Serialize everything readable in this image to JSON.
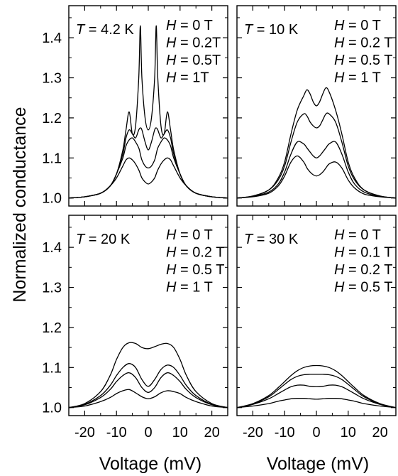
{
  "figure": {
    "ylabel": "Normalized conductance",
    "xlabel": "Voltage (mV)",
    "xlim": [
      -25,
      25
    ],
    "ylim": [
      0.98,
      1.48
    ],
    "x_ticks": [
      -20,
      -10,
      0,
      10,
      20
    ],
    "x_tick_labels": [
      "-20",
      "-10",
      "0",
      "10",
      "20"
    ],
    "y_ticks": [
      1.0,
      1.1,
      1.2,
      1.3,
      1.4
    ],
    "y_tick_labels": [
      "1.0",
      "1.1",
      "1.2",
      "1.3",
      "1.4"
    ],
    "line_color": "#000000",
    "background": "#ffffff"
  },
  "chart_data": [
    {
      "type": "line",
      "temperature_label": "T = 4.2 K",
      "legend_entries": [
        "H = 0 T",
        "H = 0.2T",
        "H = 0.5T",
        "H = 1T"
      ],
      "x": [
        -25,
        -20,
        -15,
        -12,
        -10,
        -8,
        -7,
        -6,
        -5,
        -4,
        -3,
        -2.5,
        -2,
        -1,
        0,
        1,
        2,
        2.5,
        3,
        4,
        5,
        6,
        7,
        8,
        10,
        12,
        15,
        20,
        25
      ],
      "series": [
        {
          "values": [
            1.0,
            1.003,
            1.012,
            1.03,
            1.06,
            1.12,
            1.17,
            1.215,
            1.16,
            1.18,
            1.3,
            1.43,
            1.3,
            1.2,
            1.17,
            1.2,
            1.3,
            1.43,
            1.3,
            1.18,
            1.16,
            1.215,
            1.17,
            1.12,
            1.06,
            1.03,
            1.012,
            1.003,
            1.0
          ]
        },
        {
          "values": [
            1.0,
            1.003,
            1.012,
            1.03,
            1.06,
            1.11,
            1.15,
            1.17,
            1.16,
            1.15,
            1.17,
            1.175,
            1.17,
            1.14,
            1.12,
            1.14,
            1.17,
            1.175,
            1.17,
            1.15,
            1.16,
            1.17,
            1.15,
            1.11,
            1.06,
            1.03,
            1.012,
            1.003,
            1.0
          ]
        },
        {
          "values": [
            1.0,
            1.003,
            1.012,
            1.03,
            1.06,
            1.1,
            1.13,
            1.145,
            1.15,
            1.14,
            1.125,
            1.11,
            1.095,
            1.08,
            1.075,
            1.08,
            1.095,
            1.11,
            1.125,
            1.14,
            1.15,
            1.145,
            1.13,
            1.1,
            1.06,
            1.03,
            1.012,
            1.003,
            1.0
          ]
        },
        {
          "values": [
            1.0,
            1.003,
            1.012,
            1.03,
            1.05,
            1.08,
            1.095,
            1.1,
            1.095,
            1.085,
            1.07,
            1.06,
            1.05,
            1.04,
            1.035,
            1.04,
            1.05,
            1.06,
            1.07,
            1.085,
            1.095,
            1.1,
            1.095,
            1.08,
            1.05,
            1.03,
            1.012,
            1.003,
            1.0
          ]
        }
      ]
    },
    {
      "type": "line",
      "temperature_label": "T = 10 K",
      "legend_entries": [
        "H = 0 T",
        "H = 0.2 T",
        "H = 0.5 T",
        "H = 1 T"
      ],
      "x": [
        -25,
        -20,
        -15,
        -12,
        -10,
        -8,
        -6,
        -4,
        -3,
        -2,
        -1,
        0,
        1,
        2,
        3,
        4,
        6,
        8,
        10,
        12,
        15,
        20,
        25
      ],
      "series": [
        {
          "values": [
            1.0,
            1.005,
            1.02,
            1.05,
            1.09,
            1.16,
            1.22,
            1.255,
            1.27,
            1.26,
            1.24,
            1.23,
            1.24,
            1.26,
            1.275,
            1.265,
            1.22,
            1.16,
            1.09,
            1.05,
            1.02,
            1.005,
            1.0
          ]
        },
        {
          "values": [
            1.0,
            1.005,
            1.02,
            1.045,
            1.08,
            1.14,
            1.19,
            1.21,
            1.205,
            1.19,
            1.18,
            1.175,
            1.18,
            1.195,
            1.21,
            1.21,
            1.19,
            1.14,
            1.08,
            1.045,
            1.02,
            1.005,
            1.0
          ]
        },
        {
          "values": [
            1.0,
            1.004,
            1.015,
            1.035,
            1.065,
            1.11,
            1.14,
            1.135,
            1.125,
            1.115,
            1.105,
            1.1,
            1.105,
            1.115,
            1.125,
            1.135,
            1.14,
            1.11,
            1.065,
            1.035,
            1.015,
            1.004,
            1.0
          ]
        },
        {
          "values": [
            1.0,
            1.003,
            1.012,
            1.03,
            1.055,
            1.09,
            1.105,
            1.09,
            1.075,
            1.065,
            1.058,
            1.055,
            1.058,
            1.065,
            1.075,
            1.085,
            1.09,
            1.075,
            1.045,
            1.025,
            1.01,
            1.003,
            1.0
          ]
        }
      ]
    },
    {
      "type": "line",
      "temperature_label": "T = 20 K",
      "legend_entries": [
        "H = 0 T",
        "H = 0.2 T",
        "H = 0.5 T",
        "H = 1 T"
      ],
      "x": [
        -25,
        -20,
        -15,
        -12,
        -10,
        -8,
        -6,
        -4,
        -2,
        0,
        2,
        4,
        6,
        8,
        10,
        12,
        15,
        20,
        25
      ],
      "series": [
        {
          "values": [
            1.0,
            1.01,
            1.04,
            1.08,
            1.12,
            1.15,
            1.162,
            1.16,
            1.15,
            1.147,
            1.152,
            1.158,
            1.16,
            1.15,
            1.12,
            1.08,
            1.04,
            1.01,
            1.0
          ]
        },
        {
          "values": [
            1.0,
            1.008,
            1.03,
            1.055,
            1.08,
            1.1,
            1.11,
            1.1,
            1.07,
            1.053,
            1.07,
            1.095,
            1.106,
            1.1,
            1.08,
            1.055,
            1.03,
            1.008,
            1.0
          ]
        },
        {
          "values": [
            1.0,
            1.007,
            1.025,
            1.045,
            1.065,
            1.08,
            1.087,
            1.075,
            1.05,
            1.038,
            1.05,
            1.075,
            1.087,
            1.08,
            1.065,
            1.045,
            1.025,
            1.007,
            1.0
          ]
        },
        {
          "values": [
            1.0,
            1.004,
            1.015,
            1.025,
            1.035,
            1.042,
            1.045,
            1.037,
            1.027,
            1.022,
            1.027,
            1.037,
            1.042,
            1.04,
            1.035,
            1.025,
            1.015,
            1.004,
            1.0
          ]
        }
      ]
    },
    {
      "type": "line",
      "temperature_label": "T = 30 K",
      "legend_entries": [
        "H = 0 T",
        "H = 0.1 T",
        "H = 0.2 T",
        "H = 0.5 T"
      ],
      "x": [
        -25,
        -20,
        -15,
        -12,
        -10,
        -8,
        -6,
        -4,
        -2,
        0,
        2,
        4,
        6,
        8,
        10,
        12,
        15,
        20,
        25
      ],
      "series": [
        {
          "values": [
            1.0,
            1.01,
            1.03,
            1.05,
            1.065,
            1.08,
            1.092,
            1.1,
            1.104,
            1.105,
            1.104,
            1.1,
            1.092,
            1.08,
            1.065,
            1.05,
            1.03,
            1.01,
            1.0
          ]
        },
        {
          "values": [
            1.0,
            1.009,
            1.027,
            1.045,
            1.058,
            1.07,
            1.078,
            1.082,
            1.083,
            1.083,
            1.083,
            1.082,
            1.078,
            1.07,
            1.058,
            1.045,
            1.027,
            1.009,
            1.0
          ]
        },
        {
          "values": [
            1.0,
            1.008,
            1.022,
            1.035,
            1.044,
            1.052,
            1.056,
            1.056,
            1.053,
            1.052,
            1.053,
            1.056,
            1.056,
            1.052,
            1.044,
            1.035,
            1.022,
            1.008,
            1.0
          ]
        },
        {
          "values": [
            1.0,
            1.004,
            1.01,
            1.016,
            1.019,
            1.022,
            1.023,
            1.023,
            1.022,
            1.021,
            1.022,
            1.023,
            1.023,
            1.022,
            1.019,
            1.016,
            1.01,
            1.004,
            1.0
          ]
        }
      ]
    }
  ]
}
